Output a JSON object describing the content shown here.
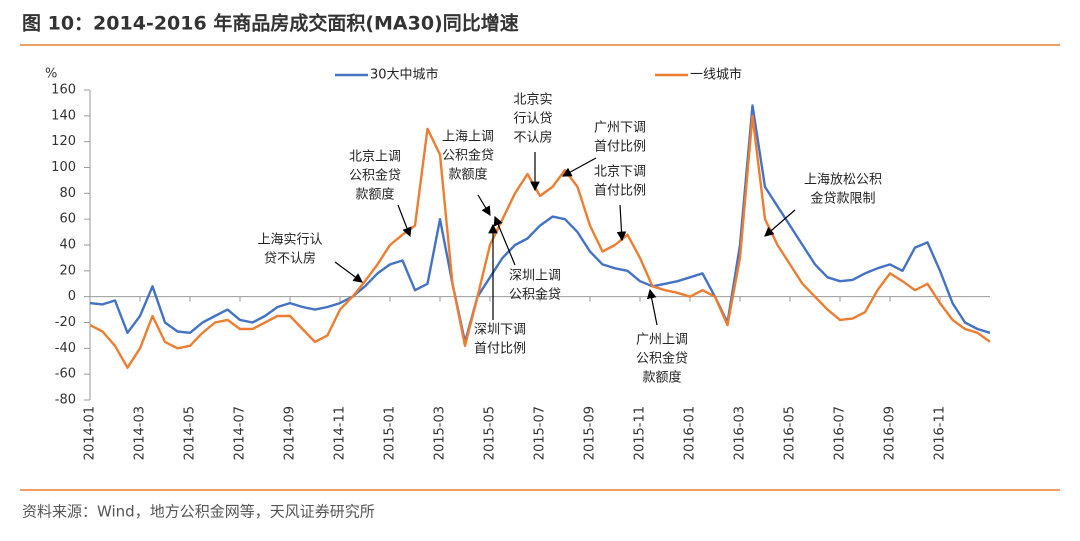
{
  "chart_data": {
    "type": "line",
    "title": "图 10：2014-2016 年商品房成交面积(MA30)同比增速",
    "y_unit": "%",
    "source": "资料来源：Wind，地方公积金网等，天风证券研究所",
    "categories": [
      "2014-01",
      null,
      null,
      null,
      "2014-03",
      null,
      null,
      null,
      "2014-05",
      null,
      null,
      null,
      "2014-07",
      null,
      null,
      null,
      "2014-09",
      null,
      null,
      null,
      "2014-11",
      null,
      null,
      null,
      "2015-01",
      null,
      null,
      null,
      "2015-03",
      null,
      null,
      null,
      "2015-05",
      null,
      null,
      null,
      "2015-07",
      null,
      null,
      null,
      "2015-09",
      null,
      null,
      null,
      "2015-11",
      null,
      null,
      null,
      "2016-01",
      null,
      null,
      null,
      "2016-03",
      null,
      null,
      null,
      "2016-05",
      null,
      null,
      null,
      "2016-07",
      null,
      null,
      null,
      "2016-09",
      null,
      null,
      null,
      "2016-11",
      null,
      null,
      null,
      null
    ],
    "series": [
      {
        "name": "30大中城市",
        "color": "#4472c4",
        "values": [
          -5,
          -6,
          -3,
          -28,
          -15,
          8,
          -20,
          -27,
          -28,
          -20,
          -15,
          -10,
          -18,
          -20,
          -15,
          -8,
          -5,
          -8,
          -10,
          -8,
          -5,
          0,
          8,
          18,
          25,
          28,
          5,
          10,
          60,
          10,
          -35,
          0,
          15,
          30,
          40,
          45,
          55,
          62,
          60,
          50,
          35,
          25,
          22,
          20,
          12,
          8,
          10,
          12,
          15,
          18,
          0,
          -20,
          40,
          148,
          85,
          70,
          55,
          40,
          25,
          15,
          12,
          13,
          18,
          22,
          25,
          20,
          38,
          42,
          20,
          -5,
          -20,
          -25,
          -28
        ]
      },
      {
        "name": "一线城市",
        "color": "#ed7d31",
        "values": [
          -22,
          -27,
          -38,
          -55,
          -40,
          -15,
          -35,
          -40,
          -38,
          -28,
          -20,
          -18,
          -25,
          -25,
          -20,
          -15,
          -15,
          -25,
          -35,
          -30,
          -10,
          0,
          12,
          25,
          40,
          48,
          55,
          130,
          110,
          10,
          -38,
          0,
          40,
          60,
          80,
          95,
          78,
          85,
          98,
          85,
          55,
          35,
          40,
          48,
          30,
          8,
          5,
          3,
          0,
          5,
          0,
          -22,
          30,
          140,
          60,
          40,
          25,
          10,
          0,
          -10,
          -18,
          -17,
          -12,
          5,
          18,
          12,
          5,
          10,
          -5,
          -18,
          -25,
          -28,
          -35
        ]
      }
    ],
    "ylim": [
      -80,
      160
    ],
    "yticks": [
      -80,
      -60,
      -40,
      -20,
      0,
      20,
      40,
      60,
      80,
      100,
      120,
      140,
      160
    ],
    "legend": "top",
    "annotations": [
      {
        "text": [
          "上海实行认",
          "贷不认房"
        ]
      },
      {
        "text": [
          "北京上调",
          "公积金贷",
          "款额度"
        ]
      },
      {
        "text": [
          "上海上调",
          "公积金贷",
          "款额度"
        ]
      },
      {
        "text": [
          "北京实",
          "行认贷",
          "不认房"
        ]
      },
      {
        "text": [
          "广州下调",
          "首付比例"
        ]
      },
      {
        "text": [
          "北京下调",
          "首付比例"
        ]
      },
      {
        "text": [
          "深圳上调",
          "公积金贷"
        ]
      },
      {
        "text": [
          "深圳下调",
          "首付比例"
        ]
      },
      {
        "text": [
          "广州上调",
          "公积金贷",
          "款额度"
        ]
      },
      {
        "text": [
          "上海放松公积",
          "金贷款限制"
        ]
      }
    ]
  }
}
